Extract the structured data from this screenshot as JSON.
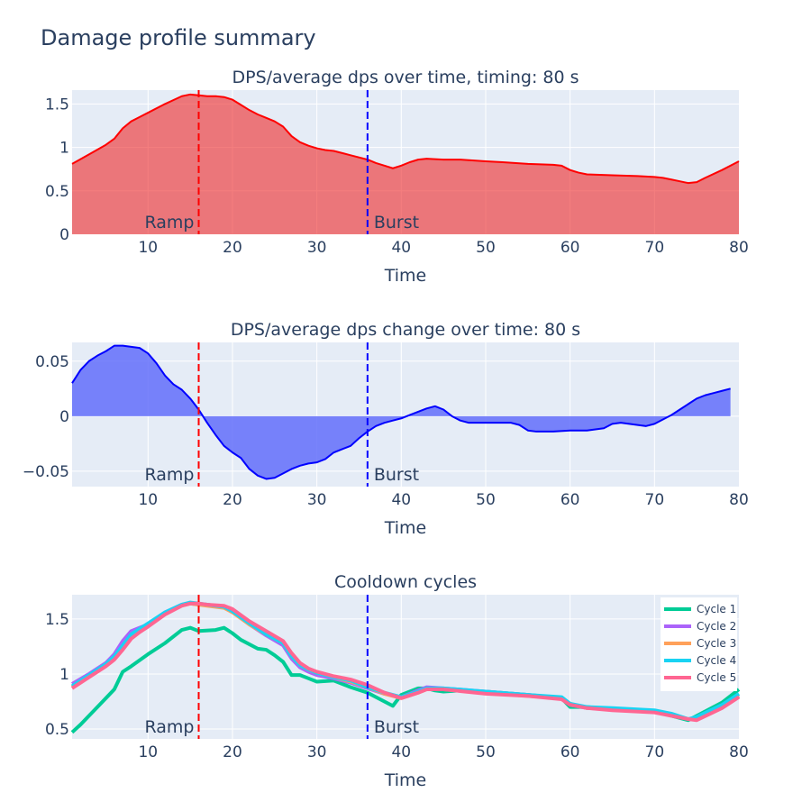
{
  "page": {
    "title": "Damage profile summary"
  },
  "colors": {
    "plot_bg": "#E5ECF6",
    "text": "#2a3f5f",
    "ramp_line": "#ff0000",
    "burst_line": "#0000ff"
  },
  "charts": [
    {
      "id": "chart1",
      "title": "DPS/average dps over time, timing: 80 s",
      "xlabel": "Time",
      "xlim": [
        1,
        80
      ],
      "xticks": [
        10,
        20,
        30,
        40,
        50,
        60,
        70,
        80
      ],
      "ylim": [
        0,
        1.66
      ],
      "yticks": [
        0,
        0.5,
        1,
        1.5
      ],
      "ytick_labels": [
        "0",
        "0.5",
        "1",
        "1.5"
      ]
    },
    {
      "id": "chart2",
      "title": "DPS/average dps change over time: 80 s",
      "xlabel": "Time",
      "xlim": [
        1,
        80
      ],
      "xticks": [
        10,
        20,
        30,
        40,
        50,
        60,
        70,
        80
      ],
      "ylim": [
        -0.064,
        0.067
      ],
      "yticks": [
        -0.05,
        0,
        0.05
      ],
      "ytick_labels": [
        "−0.05",
        "0",
        "0.05"
      ]
    },
    {
      "id": "chart3",
      "title": "Cooldown cycles",
      "xlabel": "Time",
      "xlim": [
        1,
        80
      ],
      "xticks": [
        10,
        20,
        30,
        40,
        50,
        60,
        70,
        80
      ],
      "ylim": [
        0.41,
        1.72
      ],
      "yticks": [
        0.5,
        1,
        1.5
      ],
      "ytick_labels": [
        "0.5",
        "1",
        "1.5"
      ]
    }
  ],
  "annotations": {
    "ramp": {
      "label": "Ramp",
      "x": 16
    },
    "burst": {
      "label": "Burst",
      "x": 36
    }
  },
  "chart_data": [
    {
      "type": "area",
      "title": "DPS/average dps over time, timing: 80 s",
      "xlabel": "Time",
      "ylabel": "",
      "color": "#ff0000",
      "fill": "rgba(238,40,40,0.6)",
      "x": [
        1,
        3,
        5,
        6,
        7,
        8,
        9,
        10,
        12,
        14,
        15,
        16,
        17,
        18,
        19,
        20,
        21,
        22,
        23,
        24,
        25,
        26,
        27,
        28,
        29,
        30,
        31,
        32,
        34,
        36,
        37,
        38,
        39,
        40,
        41,
        42,
        43,
        45,
        47,
        50,
        52,
        55,
        58,
        59,
        60,
        61,
        62,
        65,
        68,
        70,
        71,
        72,
        73,
        74,
        75,
        76,
        78,
        80
      ],
      "y": [
        0.81,
        0.92,
        1.03,
        1.1,
        1.22,
        1.3,
        1.35,
        1.4,
        1.5,
        1.59,
        1.61,
        1.6,
        1.59,
        1.59,
        1.58,
        1.55,
        1.49,
        1.43,
        1.38,
        1.34,
        1.3,
        1.24,
        1.13,
        1.06,
        1.02,
        0.99,
        0.97,
        0.96,
        0.91,
        0.86,
        0.82,
        0.79,
        0.76,
        0.79,
        0.83,
        0.86,
        0.87,
        0.86,
        0.86,
        0.84,
        0.83,
        0.81,
        0.8,
        0.79,
        0.74,
        0.71,
        0.69,
        0.68,
        0.67,
        0.66,
        0.65,
        0.63,
        0.61,
        0.59,
        0.6,
        0.65,
        0.74,
        0.84
      ]
    },
    {
      "type": "area",
      "title": "DPS/average dps change over time: 80 s",
      "xlabel": "Time",
      "ylabel": "",
      "color": "#0000ff",
      "fill": "rgba(99,110,250,0.85)",
      "x": [
        1,
        2,
        3,
        4,
        5,
        6,
        7,
        8,
        9,
        10,
        11,
        12,
        13,
        14,
        15,
        16,
        17,
        18,
        19,
        20,
        21,
        22,
        23,
        24,
        25,
        26,
        27,
        28,
        29,
        30,
        31,
        32,
        33,
        34,
        35,
        36,
        37,
        38,
        39,
        40,
        41,
        42,
        43,
        44,
        45,
        46,
        47,
        48,
        50,
        52,
        53,
        54,
        55,
        56,
        57,
        58,
        60,
        62,
        63,
        64,
        65,
        66,
        67,
        68,
        69,
        70,
        71,
        72,
        73,
        74,
        75,
        76,
        77,
        78,
        79
      ],
      "y": [
        0.03,
        0.042,
        0.05,
        0.055,
        0.059,
        0.064,
        0.064,
        0.063,
        0.062,
        0.057,
        0.048,
        0.037,
        0.029,
        0.024,
        0.016,
        0.006,
        -0.006,
        -0.017,
        -0.027,
        -0.033,
        -0.038,
        -0.048,
        -0.054,
        -0.057,
        -0.056,
        -0.052,
        -0.048,
        -0.045,
        -0.043,
        -0.042,
        -0.039,
        -0.033,
        -0.03,
        -0.027,
        -0.02,
        -0.014,
        -0.009,
        -0.006,
        -0.004,
        -0.002,
        0.001,
        0.004,
        0.007,
        0.009,
        0.006,
        0.0,
        -0.004,
        -0.006,
        -0.006,
        -0.006,
        -0.006,
        -0.008,
        -0.013,
        -0.014,
        -0.014,
        -0.014,
        -0.013,
        -0.013,
        -0.012,
        -0.011,
        -0.007,
        -0.006,
        -0.007,
        -0.008,
        -0.009,
        -0.007,
        -0.003,
        0.001,
        0.006,
        0.011,
        0.016,
        0.019,
        0.021,
        0.023,
        0.025
      ]
    },
    {
      "type": "line",
      "title": "Cooldown cycles",
      "xlabel": "Time",
      "ylabel": "",
      "legend_position": "top-right",
      "series": [
        {
          "name": "Cycle 1",
          "color": "#00CC96",
          "x": [
            1,
            2,
            4,
            6,
            7,
            8,
            10,
            12,
            14,
            15,
            16,
            18,
            19,
            20,
            21,
            23,
            24,
            25,
            26,
            27,
            28,
            29,
            30,
            32,
            34,
            36,
            37,
            38,
            39,
            40,
            42,
            43,
            44,
            45,
            47,
            50,
            55,
            58,
            59,
            60,
            62,
            65,
            68,
            70,
            72,
            74,
            75,
            78,
            80
          ],
          "y": [
            0.47,
            0.54,
            0.7,
            0.86,
            1.02,
            1.07,
            1.18,
            1.28,
            1.4,
            1.42,
            1.39,
            1.4,
            1.42,
            1.37,
            1.31,
            1.23,
            1.22,
            1.17,
            1.11,
            0.99,
            0.99,
            0.96,
            0.93,
            0.94,
            0.88,
            0.83,
            0.79,
            0.75,
            0.71,
            0.81,
            0.87,
            0.87,
            0.85,
            0.84,
            0.85,
            0.84,
            0.81,
            0.79,
            0.78,
            0.7,
            0.7,
            0.68,
            0.67,
            0.66,
            0.62,
            0.58,
            0.62,
            0.74,
            0.86
          ]
        },
        {
          "name": "Cycle 2",
          "color": "#AB63FA",
          "x": [
            1,
            3,
            5,
            6,
            7,
            8,
            9,
            10,
            12,
            14,
            15,
            16,
            17,
            19,
            20,
            22,
            24,
            26,
            27,
            28,
            29,
            30,
            32,
            34,
            36,
            38,
            40,
            42,
            43,
            45,
            50,
            55,
            59,
            60,
            62,
            65,
            70,
            72,
            74,
            75,
            78,
            80
          ],
          "y": [
            0.91,
            1.0,
            1.1,
            1.18,
            1.3,
            1.39,
            1.42,
            1.45,
            1.56,
            1.63,
            1.64,
            1.63,
            1.63,
            1.61,
            1.57,
            1.45,
            1.35,
            1.26,
            1.14,
            1.06,
            1.02,
            0.99,
            0.96,
            0.92,
            0.87,
            0.82,
            0.79,
            0.85,
            0.88,
            0.87,
            0.84,
            0.81,
            0.78,
            0.72,
            0.69,
            0.68,
            0.66,
            0.63,
            0.59,
            0.6,
            0.7,
            0.8
          ]
        },
        {
          "name": "Cycle 3",
          "color": "#FFA15A",
          "x": [
            1,
            3,
            5,
            6,
            7,
            8,
            9,
            10,
            12,
            14,
            15,
            16,
            17,
            19,
            20,
            22,
            24,
            26,
            27,
            28,
            29,
            30,
            32,
            34,
            36,
            38,
            40,
            42,
            43,
            45,
            50,
            55,
            59,
            60,
            62,
            65,
            70,
            72,
            74,
            75,
            78,
            80
          ],
          "y": [
            0.88,
            0.98,
            1.08,
            1.15,
            1.25,
            1.35,
            1.4,
            1.45,
            1.55,
            1.62,
            1.64,
            1.63,
            1.62,
            1.6,
            1.56,
            1.45,
            1.36,
            1.28,
            1.16,
            1.08,
            1.04,
            1.01,
            0.97,
            0.93,
            0.88,
            0.82,
            0.78,
            0.83,
            0.86,
            0.86,
            0.83,
            0.8,
            0.78,
            0.73,
            0.69,
            0.68,
            0.66,
            0.63,
            0.59,
            0.59,
            0.7,
            0.8
          ]
        },
        {
          "name": "Cycle 4",
          "color": "#19D3F3",
          "x": [
            1,
            3,
            5,
            6,
            7,
            8,
            9,
            10,
            12,
            14,
            15,
            16,
            17,
            19,
            20,
            22,
            24,
            26,
            27,
            28,
            29,
            30,
            32,
            34,
            36,
            38,
            40,
            42,
            43,
            45,
            50,
            55,
            59,
            60,
            62,
            65,
            70,
            72,
            74,
            75,
            78,
            80
          ],
          "y": [
            0.89,
            0.99,
            1.09,
            1.16,
            1.26,
            1.36,
            1.41,
            1.46,
            1.56,
            1.63,
            1.65,
            1.64,
            1.63,
            1.61,
            1.57,
            1.46,
            1.36,
            1.28,
            1.16,
            1.08,
            1.04,
            1.01,
            0.97,
            0.94,
            0.88,
            0.83,
            0.79,
            0.84,
            0.87,
            0.87,
            0.84,
            0.81,
            0.79,
            0.73,
            0.7,
            0.69,
            0.67,
            0.64,
            0.59,
            0.61,
            0.72,
            0.82
          ]
        },
        {
          "name": "Cycle 5",
          "color": "#FF6692",
          "x": [
            1,
            3,
            5,
            6,
            7,
            8,
            9,
            10,
            12,
            14,
            15,
            16,
            17,
            19,
            20,
            22,
            24,
            26,
            27,
            28,
            29,
            30,
            32,
            34,
            36,
            38,
            40,
            42,
            43,
            45,
            50,
            55,
            59,
            60,
            62,
            65,
            70,
            72,
            74,
            75,
            78,
            80
          ],
          "y": [
            0.87,
            0.97,
            1.07,
            1.13,
            1.22,
            1.32,
            1.38,
            1.43,
            1.54,
            1.62,
            1.64,
            1.64,
            1.63,
            1.62,
            1.59,
            1.48,
            1.39,
            1.3,
            1.19,
            1.1,
            1.05,
            1.02,
            0.98,
            0.95,
            0.9,
            0.83,
            0.78,
            0.83,
            0.86,
            0.86,
            0.82,
            0.8,
            0.77,
            0.72,
            0.69,
            0.67,
            0.65,
            0.62,
            0.59,
            0.58,
            0.69,
            0.79
          ]
        }
      ]
    }
  ]
}
